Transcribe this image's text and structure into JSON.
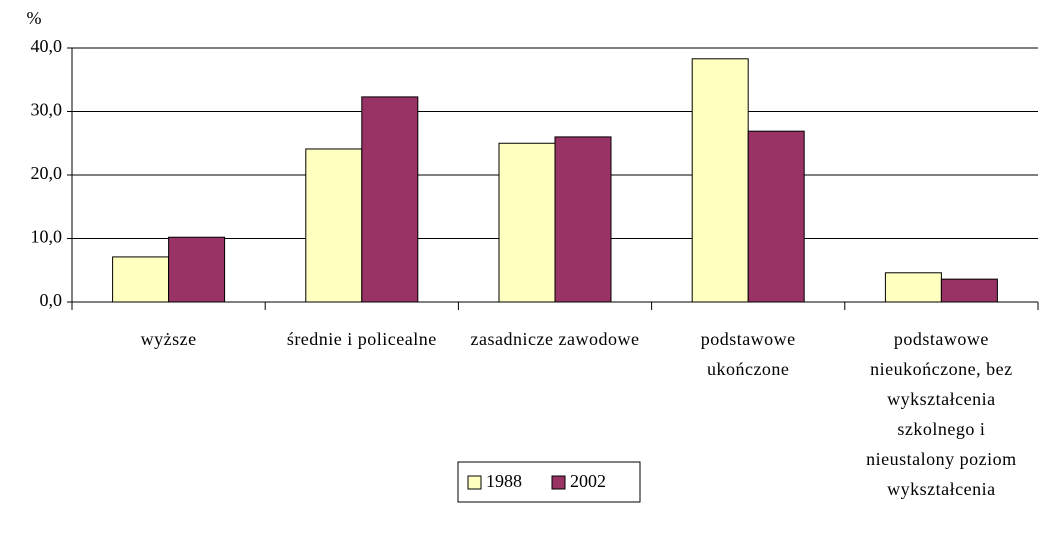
{
  "chart_data": {
    "type": "bar",
    "y_axis_label": "%",
    "categories": [
      "wyższe",
      "średnie i policealne",
      "zasadnicze zawodowe",
      "podstawowe ukończone",
      "podstawowe nieukończone, bez wykształcenia szkolnego i nieustalony poziom wykształcenia"
    ],
    "series": [
      {
        "name": "1988",
        "color": "#ffffc0",
        "values": [
          7.1,
          24.1,
          25.0,
          38.3,
          4.6
        ]
      },
      {
        "name": "2002",
        "color": "#993366",
        "values": [
          10.2,
          32.3,
          26.0,
          26.9,
          3.6
        ]
      }
    ],
    "ylim": [
      0,
      40
    ],
    "yticks": [
      {
        "value": 0,
        "label": "0,0"
      },
      {
        "value": 10,
        "label": "10,0"
      },
      {
        "value": 20,
        "label": "20,0"
      },
      {
        "value": 30,
        "label": "30,0"
      },
      {
        "value": 40,
        "label": "40,0"
      }
    ],
    "grid": true,
    "legend": "bottom"
  }
}
